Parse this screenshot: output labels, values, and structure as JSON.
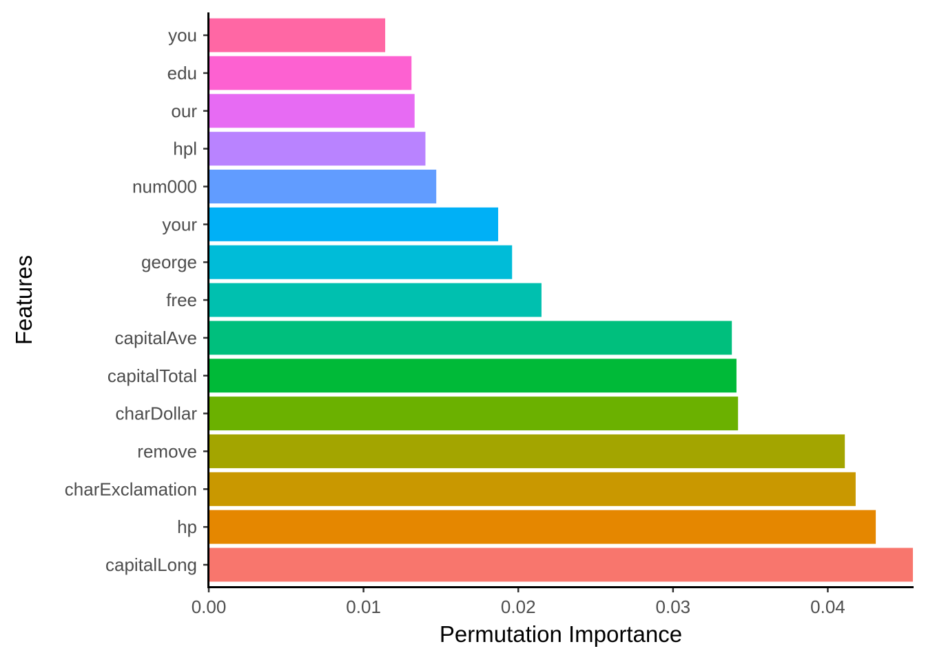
{
  "chart_data": {
    "type": "bar",
    "orientation": "horizontal",
    "title": "",
    "xlabel": "Permutation Importance",
    "ylabel": "Features",
    "xlim": [
      0,
      0.0455
    ],
    "xticks": [
      0.0,
      0.01,
      0.02,
      0.03,
      0.04
    ],
    "xtick_labels": [
      "0.00",
      "0.01",
      "0.02",
      "0.03",
      "0.04"
    ],
    "grid": false,
    "legend": "none",
    "categories": [
      "capitalLong",
      "hp",
      "charExclamation",
      "remove",
      "charDollar",
      "capitalTotal",
      "capitalAve",
      "free",
      "george",
      "your",
      "num000",
      "hpl",
      "our",
      "edu",
      "you"
    ],
    "values": [
      0.0455,
      0.0431,
      0.0418,
      0.0411,
      0.0342,
      0.0341,
      0.0338,
      0.0215,
      0.0196,
      0.0187,
      0.0147,
      0.014,
      0.0133,
      0.0131,
      0.0114
    ],
    "colors": [
      "#F8766D",
      "#E58700",
      "#C99800",
      "#A3A500",
      "#6BB100",
      "#00BA38",
      "#00BF7D",
      "#00C0AF",
      "#00BCD8",
      "#00B0F6",
      "#619CFF",
      "#B983FF",
      "#E76BF3",
      "#FD61D1",
      "#FF67A4"
    ]
  }
}
